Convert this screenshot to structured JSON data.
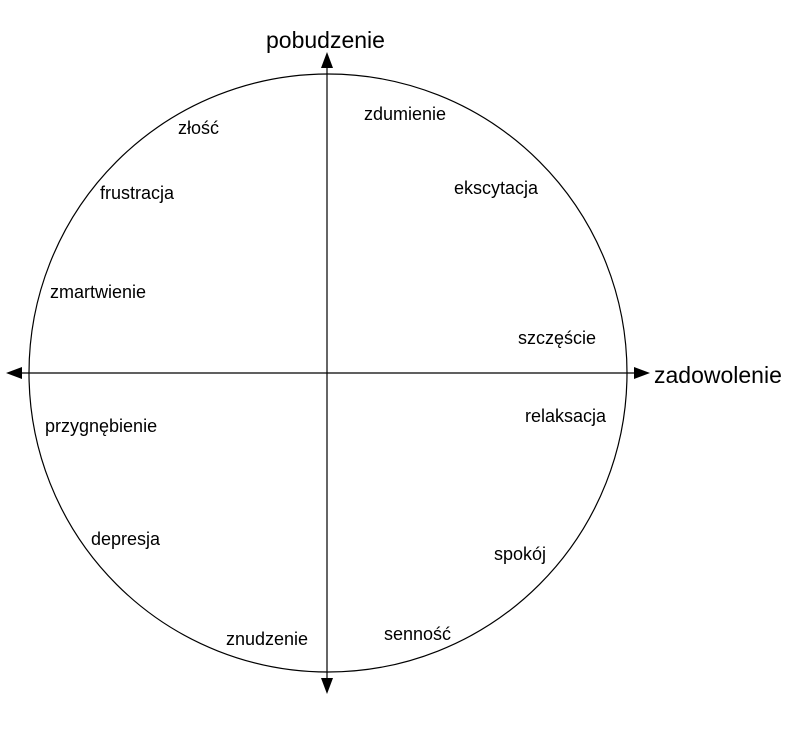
{
  "axes": {
    "vertical_label": "pobudzenie",
    "horizontal_label": "zadowolenie"
  },
  "emotions": [
    {
      "label": "złość"
    },
    {
      "label": "frustracja"
    },
    {
      "label": "zmartwienie"
    },
    {
      "label": "zdumienie"
    },
    {
      "label": "ekscytacja"
    },
    {
      "label": "szczęście"
    },
    {
      "label": "relaksacja"
    },
    {
      "label": "przygnębienie"
    },
    {
      "label": "depresja"
    },
    {
      "label": "znudzenie"
    },
    {
      "label": "spokój"
    },
    {
      "label": "senność"
    }
  ],
  "colors": {
    "line": "#000000",
    "text": "#000000",
    "background": "#ffffff"
  }
}
